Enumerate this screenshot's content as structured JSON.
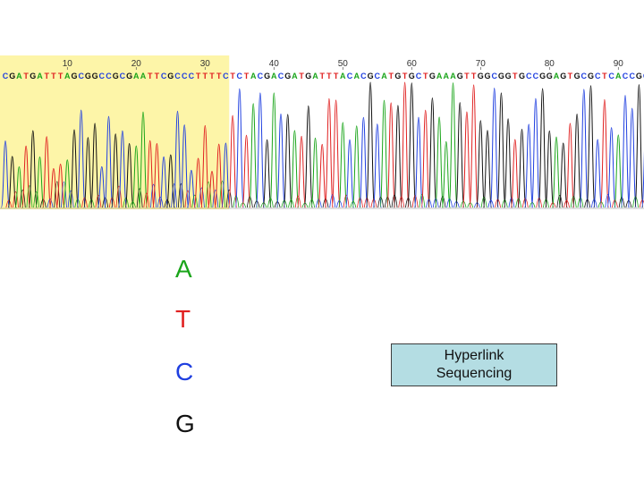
{
  "trace": {
    "sequence": "CGATGATTTAGCGGCCGCGAATTCGCCCTTTTCTCTACGACGATGATTTACACGCATGTGCTGAAAGTTGGCGGTGCCGGAGTGCGCTCACCGC",
    "position_labels": [
      "10",
      "20",
      "30",
      "40",
      "50",
      "60",
      "70",
      "80",
      "90"
    ],
    "highlight_end_position": 33,
    "highlight_color": "#fdf5a8"
  },
  "base_colors": {
    "A": "#1aa51a",
    "T": "#e02020",
    "C": "#1f3fe0",
    "G": "#111111"
  },
  "legend": [
    {
      "letter": "A",
      "color": "#1aa51a"
    },
    {
      "letter": "T",
      "color": "#e02020"
    },
    {
      "letter": "C",
      "color": "#1f3fe0"
    },
    {
      "letter": "G",
      "color": "#111111"
    }
  ],
  "hyperlink": {
    "line1": "Hyperlink",
    "line2": "Sequencing",
    "background": "#b4dde3"
  }
}
